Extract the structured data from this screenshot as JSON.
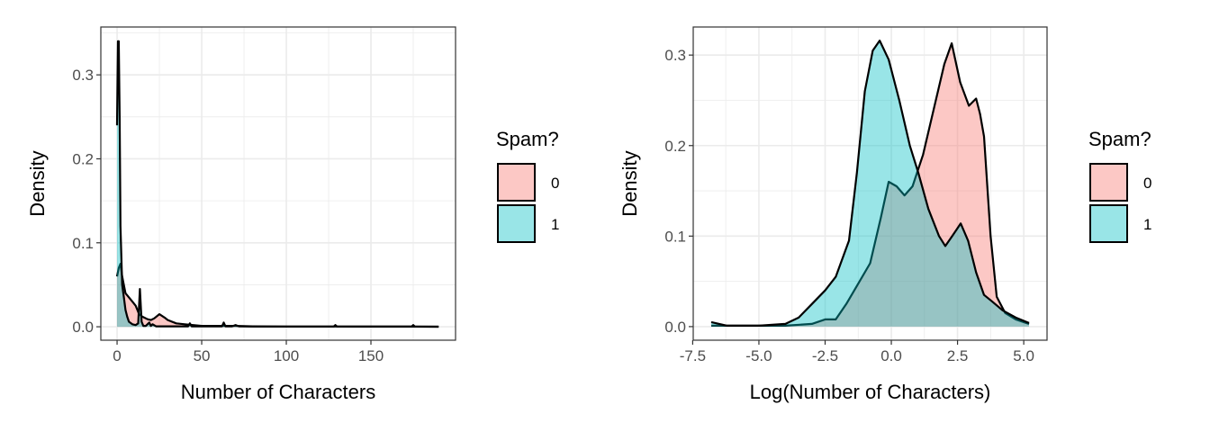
{
  "chart_data": [
    {
      "type": "area",
      "subtype": "density",
      "title": "",
      "xlabel": "Number of Characters",
      "ylabel": "Density",
      "xlim": [
        -9.6,
        200
      ],
      "ylim": [
        -0.016,
        0.357
      ],
      "xticks": [
        0,
        50,
        100,
        150
      ],
      "xtick_labels": [
        "0",
        "50",
        "100",
        "150"
      ],
      "yticks": [
        0,
        0.1,
        0.2,
        0.3
      ],
      "ytick_labels": [
        "0.0",
        "0.1",
        "0.2",
        "0.3"
      ],
      "grid": true,
      "legend": {
        "title": "Spam?",
        "position": "right",
        "entries": [
          "0",
          "1"
        ]
      },
      "series": [
        {
          "name": "0",
          "color": "#F8766D",
          "x": [
            0,
            1,
            2,
            3,
            5,
            7,
            9,
            11,
            12,
            13,
            15,
            18,
            20,
            22,
            25,
            28,
            30,
            35,
            40,
            45,
            50,
            60,
            70,
            80,
            100,
            128,
            150,
            175,
            190
          ],
          "y": [
            0.06,
            0.07,
            0.075,
            0.06,
            0.04,
            0.035,
            0.03,
            0.025,
            0.02,
            0.015,
            0.012,
            0.009,
            0.008,
            0.01,
            0.015,
            0.011,
            0.008,
            0.004,
            0.003,
            0.002,
            0.001,
            0.001,
            0.001,
            0.0005,
            0.0003,
            0.0003,
            0.0002,
            0.0002,
            0.0001
          ]
        },
        {
          "name": "1",
          "color": "#00BFC4",
          "x": [
            0,
            0.5,
            1,
            1.5,
            2,
            3,
            4,
            5,
            6,
            7,
            9,
            11,
            12.5,
            13.5,
            14.5,
            15.5,
            17,
            19,
            20,
            21,
            23,
            25,
            30,
            42,
            43,
            44,
            50,
            62,
            63,
            64,
            68,
            70,
            72,
            80,
            100,
            128,
            129,
            130,
            150,
            174,
            175,
            176,
            190
          ],
          "y": [
            0.24,
            0.34,
            0.34,
            0.25,
            0.12,
            0.05,
            0.035,
            0.02,
            0.012,
            0.006,
            0.003,
            0.002,
            0.004,
            0.045,
            0.006,
            0.001,
            0.001,
            0.005,
            0.001,
            0.003,
            0.0005,
            0.0005,
            0.0005,
            0.0005,
            0.004,
            0.0005,
            0.0005,
            0.0005,
            0.005,
            0.0005,
            0.0005,
            0.002,
            0.0005,
            0.0003,
            0.0003,
            0.0003,
            0.002,
            0.0003,
            0.0002,
            0.0002,
            0.002,
            0.0002,
            0.0001
          ]
        }
      ]
    },
    {
      "type": "area",
      "subtype": "density",
      "title": "",
      "xlabel": "Log(Number of Characters)",
      "ylabel": "Density",
      "xlim": [
        -7.48,
        5.88
      ],
      "ylim": [
        -0.015,
        0.331
      ],
      "xticks": [
        -7.5,
        -5,
        -2.5,
        0,
        2.5,
        5
      ],
      "xtick_labels": [
        "-7.5",
        "-5.0",
        "-2.5",
        "0.0",
        "2.5",
        "5.0"
      ],
      "yticks": [
        0,
        0.1,
        0.2,
        0.3
      ],
      "ytick_labels": [
        "0.0",
        "0.1",
        "0.2",
        "0.3"
      ],
      "grid": true,
      "legend": {
        "title": "Spam?",
        "position": "right",
        "entries": [
          "0",
          "1"
        ]
      },
      "series": [
        {
          "name": "0",
          "color": "#F8766D",
          "x": [
            -6.8,
            -6,
            -5,
            -4,
            -3,
            -2.5,
            -2.1,
            -1.7,
            -1.3,
            -0.8,
            -0.4,
            -0.1,
            0.2,
            0.5,
            0.8,
            1.2,
            1.6,
            2.0,
            2.28,
            2.6,
            2.93,
            3.2,
            3.35,
            3.5,
            3.75,
            3.98,
            4.3,
            4.7,
            5.2
          ],
          "y": [
            0.001,
            0.001,
            0.001,
            0.001,
            0.003,
            0.008,
            0.008,
            0.025,
            0.045,
            0.07,
            0.12,
            0.16,
            0.155,
            0.145,
            0.155,
            0.19,
            0.24,
            0.29,
            0.313,
            0.27,
            0.244,
            0.252,
            0.235,
            0.21,
            0.1,
            0.033,
            0.015,
            0.008,
            0.003
          ]
        },
        {
          "name": "1",
          "color": "#00BFC4",
          "x": [
            -6.8,
            -6.2,
            -5,
            -4,
            -3.5,
            -3,
            -2.5,
            -2.1,
            -1.6,
            -1.3,
            -1.0,
            -0.7,
            -0.44,
            -0.1,
            0.3,
            0.7,
            1.02,
            1.4,
            1.8,
            2.04,
            2.3,
            2.62,
            2.9,
            3.2,
            3.5,
            3.8,
            4.2,
            4.7,
            5.2
          ],
          "y": [
            0.005,
            0.001,
            0.001,
            0.003,
            0.01,
            0.025,
            0.04,
            0.055,
            0.095,
            0.17,
            0.26,
            0.305,
            0.316,
            0.295,
            0.25,
            0.2,
            0.17,
            0.13,
            0.1,
            0.089,
            0.1,
            0.114,
            0.095,
            0.06,
            0.035,
            0.028,
            0.018,
            0.01,
            0.004
          ]
        }
      ]
    }
  ]
}
